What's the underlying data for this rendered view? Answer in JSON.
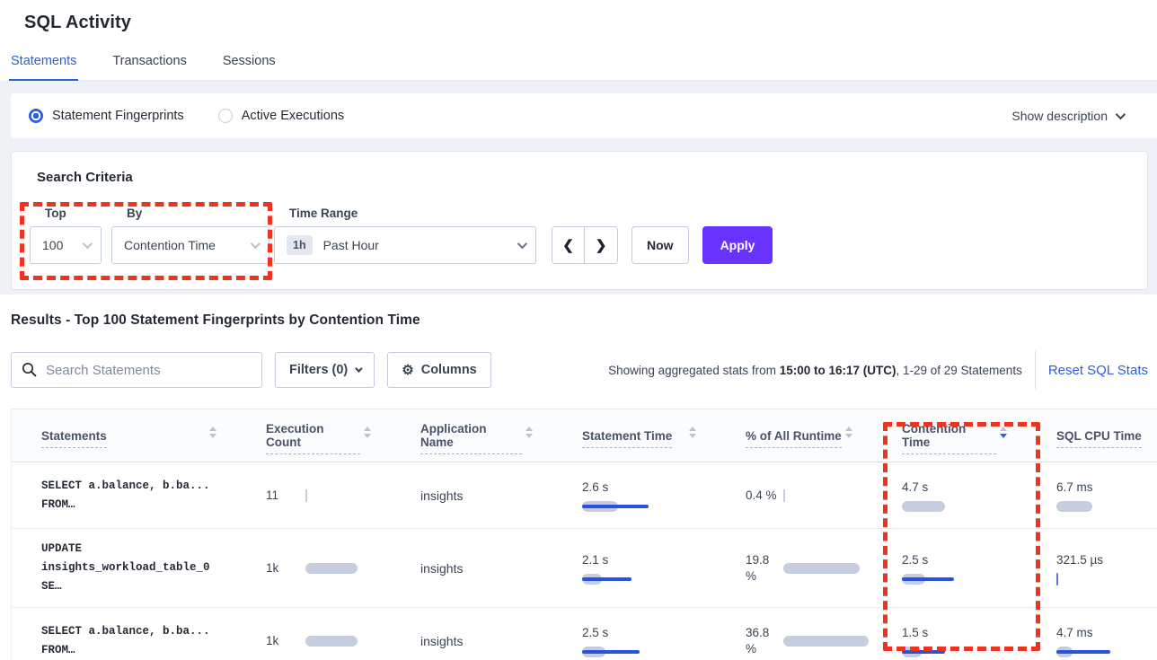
{
  "page": {
    "title": "SQL Activity"
  },
  "tabs": [
    {
      "label": "Statements",
      "active": true
    },
    {
      "label": "Transactions",
      "active": false
    },
    {
      "label": "Sessions",
      "active": false
    }
  ],
  "view_toggle": {
    "options": [
      {
        "label": "Statement Fingerprints",
        "selected": true
      },
      {
        "label": "Active Executions",
        "selected": false
      }
    ],
    "show_description_label": "Show description"
  },
  "search_criteria": {
    "heading": "Search Criteria",
    "top": {
      "label": "Top",
      "value": "100"
    },
    "by": {
      "label": "By",
      "value": "Contention Time"
    },
    "time_range": {
      "label": "Time Range",
      "badge": "1h",
      "value": "Past Hour"
    },
    "now_label": "Now",
    "apply_label": "Apply"
  },
  "icons": {
    "search": "magnifier",
    "gear": "⚙",
    "chevron_left": "❮",
    "chevron_right": "❯",
    "chevron_down": "css-chevron",
    "sort": "up-down-triangles"
  },
  "results": {
    "heading": "Results - Top 100 Statement Fingerprints by Contention Time",
    "search_placeholder": "Search Statements",
    "filters_label": "Filters (0)",
    "columns_label": "Columns",
    "stats_prefix": "Showing aggregated stats from ",
    "stats_bold": "15:00 to 16:17 (UTC)",
    "stats_suffix": ", 1-29 of 29 Statements",
    "reset_label": "Reset SQL Stats"
  },
  "table": {
    "columns": [
      {
        "label": "Statements",
        "sort": "none"
      },
      {
        "label": "Execution Count",
        "sort": "none"
      },
      {
        "label": "Application Name",
        "sort": "none"
      },
      {
        "label": "Statement Time",
        "sort": "none"
      },
      {
        "label": "% of All Runtime",
        "sort": "none"
      },
      {
        "label": "Contention Time",
        "sort": "desc"
      },
      {
        "label": "SQL CPU Time",
        "sort": "none"
      }
    ],
    "rows": [
      {
        "statement": [
          "SELECT a.balance, b.ba...",
          "FROM…"
        ],
        "execution_count": "11",
        "application": "insights",
        "statement_time": "2.6 s",
        "pct_runtime": "0.4 %",
        "contention_time": "4.7 s",
        "sql_cpu_time": "6.7 ms",
        "bars": {
          "execution": {
            "gray": 2,
            "blue": 0
          },
          "statement_time": {
            "gray": 40,
            "blue": 74
          },
          "pct_runtime": {
            "gray": 2,
            "blue": 0
          },
          "contention_time": {
            "gray": 48,
            "blue": 0
          },
          "sql_cpu_time": {
            "gray": 40,
            "blue": 0
          }
        }
      },
      {
        "statement": [
          "UPDATE",
          "insights_workload_table_0 SE…"
        ],
        "execution_count": "1k",
        "application": "insights",
        "statement_time": "2.1 s",
        "pct_runtime": "19.8 %",
        "contention_time": "2.5 s",
        "sql_cpu_time": "321.5 µs",
        "bars": {
          "execution": {
            "gray": 58,
            "blue": 0
          },
          "statement_time": {
            "gray": 22,
            "blue": 55
          },
          "pct_runtime": {
            "gray": 85,
            "blue": 0
          },
          "contention_time": {
            "gray": 26,
            "blue": 58
          },
          "sql_cpu_time": {
            "gray": 0,
            "blue": 2
          }
        }
      },
      {
        "statement": [
          "SELECT a.balance, b.ba...",
          "FROM…"
        ],
        "execution_count": "1k",
        "application": "insights",
        "statement_time": "2.5 s",
        "pct_runtime": "36.8 %",
        "contention_time": "1.5 s",
        "sql_cpu_time": "4.7 ms",
        "bars": {
          "execution": {
            "gray": 58,
            "blue": 0
          },
          "statement_time": {
            "gray": 26,
            "blue": 64
          },
          "pct_runtime": {
            "gray": 95,
            "blue": 0
          },
          "contention_time": {
            "gray": 22,
            "blue": 48
          },
          "sql_cpu_time": {
            "gray": 18,
            "blue": 60
          }
        }
      }
    ]
  },
  "annotations": {
    "color": "#F2321C",
    "boxes": [
      "top-by-controls",
      "contention-time-column"
    ]
  }
}
